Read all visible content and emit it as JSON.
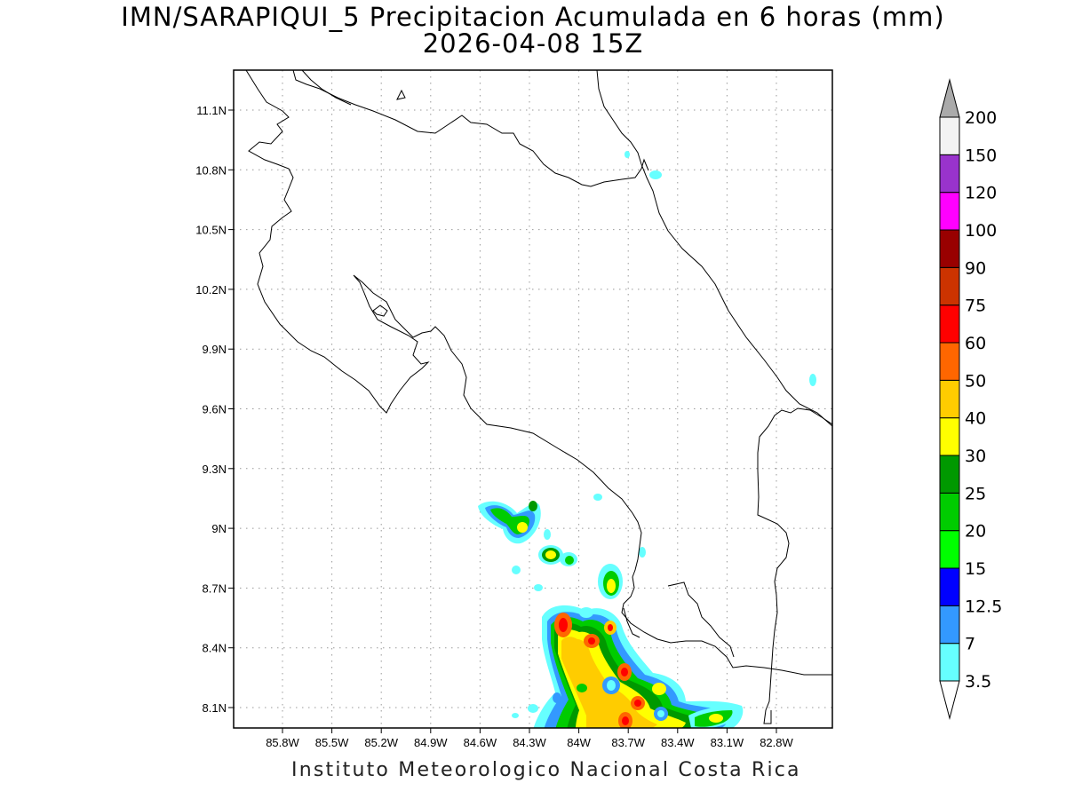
{
  "title_line1": "IMN/SARAPIQUI_5 Precipitacion Acumulada en 6 horas (mm)",
  "title_line2": "2026-04-08 15Z",
  "footer": "Instituto Meteorologico Nacional Costa Rica",
  "map": {
    "lon_ticks": [
      "85.8W",
      "85.5W",
      "85.2W",
      "84.9W",
      "84.6W",
      "84.3W",
      "84W",
      "83.7W",
      "83.4W",
      "83.1W",
      "82.8W"
    ],
    "lat_ticks": [
      "11.1N",
      "10.8N",
      "10.5N",
      "10.2N",
      "9.9N",
      "9.6N",
      "9.3N",
      "9N",
      "8.7N",
      "8.4N",
      "8.1N"
    ],
    "lon_values": [
      -85.8,
      -85.5,
      -85.2,
      -84.9,
      -84.6,
      -84.3,
      -84.0,
      -83.7,
      -83.4,
      -83.1,
      -82.8
    ],
    "lat_values": [
      11.1,
      10.8,
      10.5,
      10.2,
      9.9,
      9.6,
      9.3,
      9.0,
      8.7,
      8.4,
      8.1
    ],
    "grid": true
  },
  "colorbar": {
    "labels": [
      "3.5",
      "7",
      "12.5",
      "15",
      "20",
      "25",
      "30",
      "40",
      "50",
      "60",
      "75",
      "90",
      "100",
      "120",
      "150",
      "200"
    ],
    "colors": [
      "#66ffff",
      "#3399ff",
      "#0000ff",
      "#00ff00",
      "#00cc00",
      "#009900",
      "#ffff00",
      "#ffcc00",
      "#ff6600",
      "#ff0000",
      "#cc3300",
      "#990000",
      "#ff00ff",
      "#9933cc",
      "#f2f2f2",
      "#aaaaaa"
    ],
    "under_color": "#ffffff",
    "over_color": "#aaaaaa"
  }
}
